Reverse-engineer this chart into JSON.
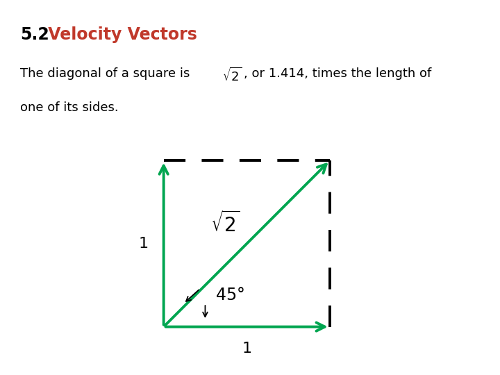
{
  "title_prefix": "5.2",
  "title_colored": " Velocity Vectors",
  "title_prefix_color": "#000000",
  "title_color": "#c0392b",
  "subtitle_line1": "The diagonal of a square is ",
  "subtitle_sqrt2_text": ", or 1.414, times the length of",
  "subtitle_line2": "one of its sides.",
  "green_color": "#00a550",
  "black_color": "#000000",
  "fig_bg": "#ffffff",
  "font_size_title": 17,
  "font_size_subtitle": 13,
  "font_size_labels": 16,
  "font_size_sqrt2_diag": 20,
  "font_size_angle": 17
}
